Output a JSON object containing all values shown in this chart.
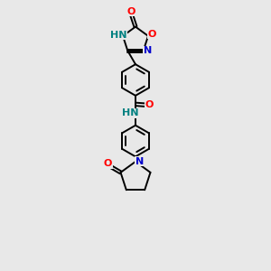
{
  "background_color": "#e8e8e8",
  "bond_color": "#000000",
  "atom_colors": {
    "O": "#ff0000",
    "N": "#0000cd",
    "H": "#008080",
    "C": "#000000"
  },
  "figsize": [
    3.0,
    3.0
  ],
  "dpi": 100
}
